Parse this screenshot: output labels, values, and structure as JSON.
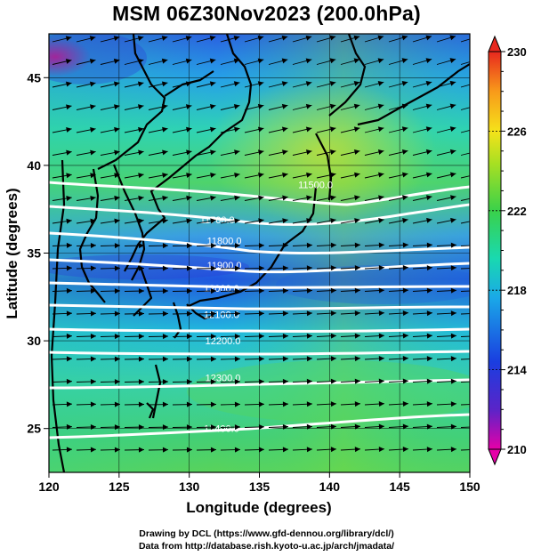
{
  "title": "MSM 06Z30Nov2023 (200.0hPa)",
  "xlabel": "Longitude (degrees)",
  "ylabel": "Latitude  (degrees)",
  "credit_line1": "Drawing by DCL (https://www.gfd-dennou.org/library/dcl/)",
  "credit_line2": "Data from http://database.rish.kyoto-u.ac.jp/arch/jmadata/",
  "chart_data": {
    "type": "map",
    "variable": "temperature (shaded), geopotential height (contours), wind (vectors)",
    "xlim": [
      120,
      150
    ],
    "ylim": [
      22.5,
      47.5
    ],
    "x_ticks": [
      120,
      125,
      130,
      135,
      140,
      145,
      150
    ],
    "y_ticks": [
      25,
      30,
      35,
      40,
      45
    ],
    "colorbar": {
      "min": 210,
      "max": 230,
      "tick_labels": [
        210,
        214,
        218,
        222,
        226,
        230
      ],
      "colors": [
        "#e600a8",
        "#5a24c8",
        "#1a3ee0",
        "#1aa8e8",
        "#19d9b0",
        "#3ad14a",
        "#a9e022",
        "#f5e21a",
        "#f89a1a",
        "#e8281e"
      ]
    },
    "height_contours": [
      {
        "label": "11500.0",
        "label_lon": 139.0,
        "label_lat": 38.7
      },
      {
        "label": "11700.0",
        "label_lon": 132.0,
        "label_lat": 36.7
      },
      {
        "label": "11800.0",
        "label_lon": 132.5,
        "label_lat": 35.5
      },
      {
        "label": "11900.0",
        "label_lon": 132.5,
        "label_lat": 34.1
      },
      {
        "label": "12000.0",
        "label_lon": 132.3,
        "label_lat": 32.8
      },
      {
        "label": "12100.0",
        "label_lon": 132.3,
        "label_lat": 31.3
      },
      {
        "label": "12200.0",
        "label_lon": 132.4,
        "label_lat": 29.8
      },
      {
        "label": "12300.0",
        "label_lon": 132.4,
        "label_lat": 27.7
      },
      {
        "label": "12400.0",
        "label_lon": 132.3,
        "label_lat": 24.8
      }
    ],
    "wind_direction": "predominantly westerly to west-southwesterly"
  }
}
